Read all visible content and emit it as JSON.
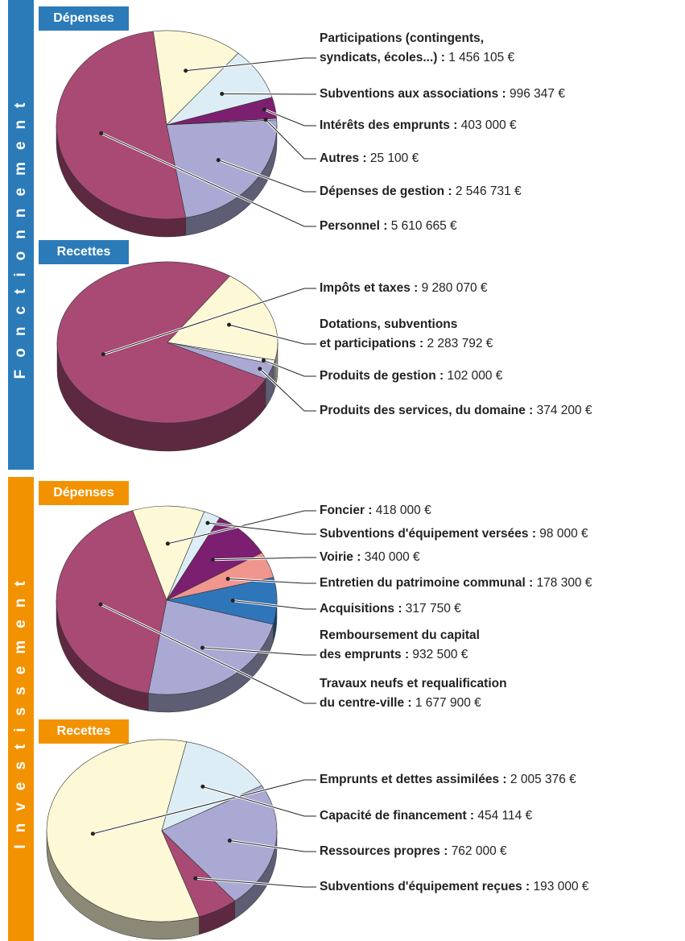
{
  "sections": [
    {
      "label": "Fonctionnement",
      "color": "#2b7bb9"
    },
    {
      "label": "Investissement",
      "color": "#f39200"
    }
  ],
  "chart_data": [
    {
      "type": "pie",
      "title": "Dépenses",
      "startangle": -97,
      "categories": [
        "Participations (contingents,\nsyndicats, écoles...) :",
        "Subventions aux associations :",
        "Intérêts des emprunts :",
        "Autres :",
        "Dépenses de gestion :",
        "Personnel :"
      ],
      "values": [
        1456105,
        996347,
        403000,
        25100,
        2546731,
        5610665
      ],
      "value_labels": [
        "1 456 105 €",
        "996 347 €",
        "403 000 €",
        "25 100 €",
        "2 546 731 €",
        "5 610 665 €"
      ],
      "colors": [
        "#fdf8d6",
        "#dcedf5",
        "#7d1f70",
        "#eef4f8",
        "#a9a9d3",
        "#a94a74"
      ]
    },
    {
      "type": "pie",
      "title": "Recettes",
      "startangle": 27,
      "categories": [
        "Impôts et taxes :",
        "Dotations, subventions\net participations :",
        "Produits de gestion :",
        "Produits des services, du domaine :"
      ],
      "values": [
        9280070,
        2283792,
        102000,
        374200
      ],
      "value_labels": [
        "9 280 070 €",
        "2 283 792 €",
        "102 000 €",
        "374 200 €"
      ],
      "colors": [
        "#a94a74",
        "#fdf8d6",
        "#eef4f8",
        "#a9a9d3"
      ]
    },
    {
      "type": "pie",
      "title": "Dépenses",
      "startangle": -108,
      "categories": [
        "Foncier :",
        "Subventions d'équipement versées :",
        "Voirie :",
        "Entretien du patrimoine communal :",
        "Acquisitions :",
        "Remboursement du capital\ndes emprunts :",
        "Travaux neufs et requalification\ndu centre-ville :"
      ],
      "values": [
        418000,
        98000,
        340000,
        178300,
        317750,
        932500,
        1677900
      ],
      "value_labels": [
        "418 000 €",
        "98 000 €",
        "340 000 €",
        "178 300 €",
        "317 750 €",
        "932 500 €",
        "1 677 900 €"
      ],
      "colors": [
        "#fdf8d6",
        "#dcedf5",
        "#7d1f70",
        "#f1958f",
        "#2f75b9",
        "#a9a9d3",
        "#a94a74"
      ]
    },
    {
      "type": "pie",
      "title": "Recettes",
      "startangle": 71,
      "categories": [
        "Emprunts et dettes assimilées :",
        "Capacité de financement :",
        "Ressources propres :",
        "Subventions d'équipement reçues :"
      ],
      "values": [
        2005376,
        454114,
        762000,
        193000
      ],
      "value_labels": [
        "2 005 376 €",
        "454 114 €",
        "762 000 €",
        "193 000 €"
      ],
      "colors": [
        "#fdf8d6",
        "#dcedf5",
        "#a9a9d3",
        "#a94a74"
      ]
    }
  ]
}
